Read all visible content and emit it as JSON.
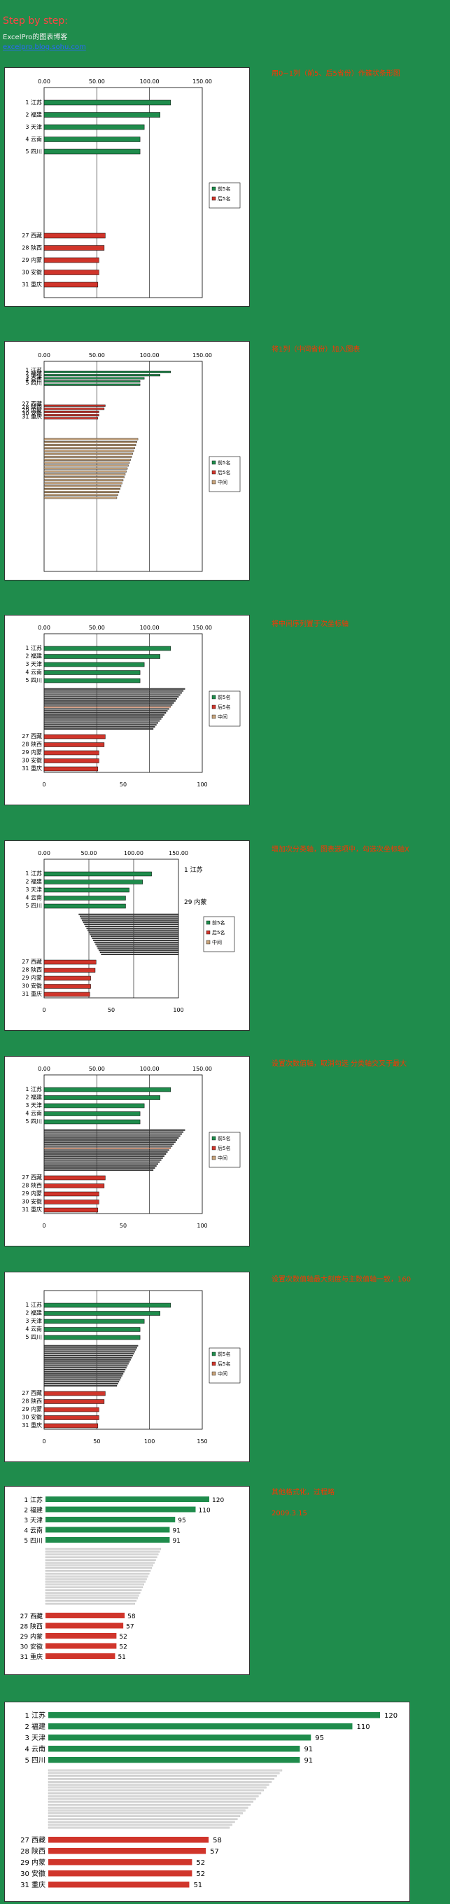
{
  "header": {
    "title": "Step by step:",
    "subtitle": "ExcelPro的图表博客",
    "link": "excelpro.blog.sohu.com"
  },
  "notes": [
    "用0~1列（前5、后5省份）作簇状条形图",
    "将1列（中间省份）加入图表",
    "将中间序列置于次坐标轴",
    "增加次分类轴，图表选项中，勾选次坐标轴X",
    "设置次数值轴，取消勾选 分类轴交叉于最大",
    "设置次数值轴最大刻度与主数值轴一致，160",
    "其他格式化，过程略",
    "2009.3.15"
  ],
  "chart_data": {
    "type": "bar",
    "categories_top": [
      "1 江苏",
      "2 福建",
      "3 天津",
      "4 云南",
      "5 四川"
    ],
    "categories_bottom": [
      "27 西藏",
      "28 陕西",
      "29 内蒙",
      "30 安徽",
      "31 重庆"
    ],
    "series": [
      {
        "name": "前5名",
        "color": "#1f8c4c",
        "values": [
          120,
          110,
          95,
          91,
          91
        ]
      },
      {
        "name": "后5名",
        "color": "#d0352b",
        "values": [
          58,
          57,
          52,
          52,
          51
        ]
      },
      {
        "name": "中间",
        "color": "#c7a37a",
        "values": [
          89,
          88,
          87,
          86,
          85,
          84,
          83,
          82,
          81,
          80,
          79,
          78,
          77,
          76,
          75,
          74,
          73,
          72,
          71,
          70,
          69
        ]
      }
    ],
    "final_labels_top": [
      "120",
      "110",
      "95",
      "91",
      "91"
    ],
    "final_labels_bottom": [
      "58",
      "57",
      "52",
      "52",
      "51"
    ],
    "primary_axis_ticks": [
      "0.00",
      "50.00",
      "100.00",
      "150.00"
    ],
    "secondary_axis_ticks": [
      "0",
      "50",
      "100",
      "150"
    ],
    "secondary_axis_ticks_short": [
      "0",
      "50",
      "100"
    ],
    "annotations": [
      "1 江苏",
      "29 内蒙"
    ],
    "xlim": [
      0,
      150
    ],
    "legend_position": "right"
  }
}
